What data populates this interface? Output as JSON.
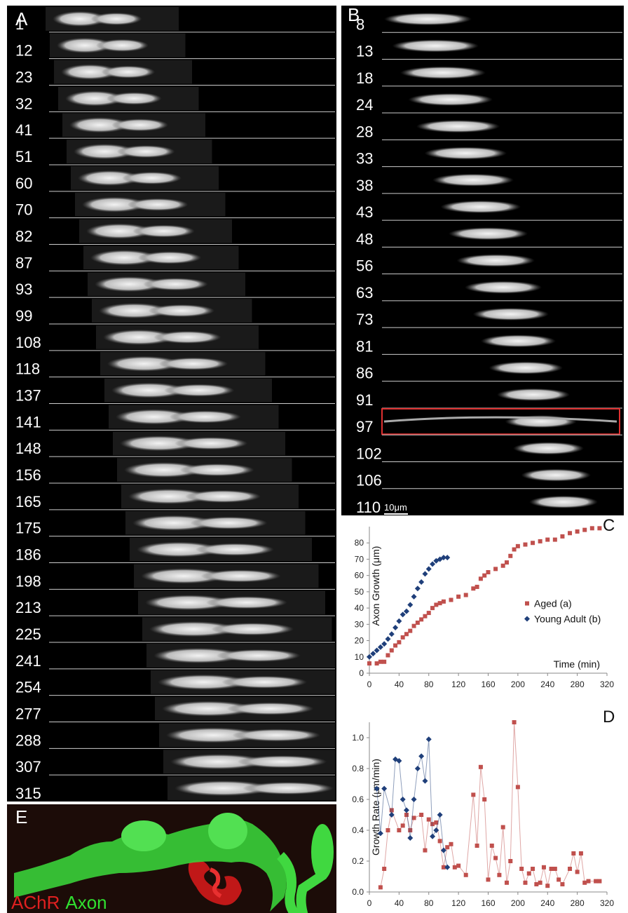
{
  "panels": {
    "A": {
      "label": "A",
      "times": [
        1,
        12,
        23,
        32,
        41,
        51,
        60,
        70,
        82,
        87,
        93,
        99,
        108,
        118,
        137,
        141,
        148,
        156,
        165,
        175,
        186,
        198,
        213,
        225,
        241,
        254,
        277,
        288,
        307,
        315
      ]
    },
    "B": {
      "label": "B",
      "times": [
        8,
        13,
        18,
        24,
        28,
        33,
        38,
        43,
        48,
        56,
        63,
        73,
        81,
        86,
        91,
        97,
        102,
        106,
        110
      ],
      "scale_bar": "10μm",
      "highlight": {
        "time": 97,
        "color": "#e03030"
      }
    },
    "E": {
      "label": "E",
      "legend": [
        {
          "text": "AChR",
          "color": "#e02020"
        },
        {
          "text": "Axon",
          "color": "#30e030"
        }
      ]
    }
  },
  "chart_data": [
    {
      "type": "scatter",
      "label": "C",
      "x_label": "Time (min)",
      "y_label": "Axon Growth (μm)",
      "xlim": [
        0,
        320
      ],
      "xticks": [
        0,
        40,
        80,
        120,
        160,
        200,
        240,
        280,
        320
      ],
      "ylim": [
        0,
        90
      ],
      "yticks": [
        0,
        10,
        20,
        30,
        40,
        50,
        60,
        70,
        80
      ],
      "legend": "right",
      "series": [
        {
          "name": "Aged (a)",
          "color": "#c0504d",
          "marker": "square",
          "x": [
            0,
            10,
            15,
            20,
            25,
            30,
            35,
            40,
            45,
            50,
            55,
            60,
            65,
            70,
            75,
            80,
            85,
            90,
            95,
            100,
            110,
            120,
            130,
            140,
            145,
            150,
            155,
            160,
            170,
            180,
            185,
            190,
            195,
            200,
            210,
            220,
            230,
            240,
            250,
            260,
            270,
            280,
            290,
            300,
            310
          ],
          "values": [
            6,
            6,
            7,
            7,
            11,
            14,
            17,
            19,
            22,
            24,
            26,
            29,
            31,
            33,
            35,
            37,
            40,
            42,
            43,
            44,
            45,
            47,
            48,
            52,
            53,
            58,
            60,
            62,
            64,
            66,
            68,
            72,
            76,
            78,
            79,
            80,
            81,
            82,
            82,
            84,
            86,
            87,
            88,
            89,
            89
          ]
        },
        {
          "name": "Young Adult (b)",
          "color": "#1f3f7a",
          "marker": "diamond",
          "x": [
            0,
            5,
            10,
            15,
            20,
            25,
            30,
            35,
            40,
            45,
            50,
            55,
            60,
            65,
            70,
            75,
            80,
            85,
            90,
            95,
            100,
            105
          ],
          "values": [
            10,
            12,
            14,
            16,
            18,
            21,
            24,
            28,
            32,
            36,
            38,
            42,
            47,
            52,
            56,
            61,
            64,
            67,
            69,
            70,
            71,
            71
          ]
        }
      ]
    },
    {
      "type": "line",
      "label": "D",
      "y_label": "Growth Rate (μm/min)",
      "xlim": [
        0,
        320
      ],
      "xticks": [
        0,
        40,
        80,
        120,
        160,
        200,
        240,
        280,
        320
      ],
      "ylim": [
        0,
        1.1
      ],
      "yticks": [
        {
          "value": 0,
          "label": "0.0"
        },
        0.2,
        0.4,
        0.6,
        0.8,
        {
          "value": 1,
          "label": "1.0"
        }
      ],
      "series": [
        {
          "name": "Aged (a)",
          "color": "#c0504d",
          "marker": "square",
          "x": [
            15,
            20,
            25,
            30,
            40,
            45,
            50,
            55,
            60,
            70,
            75,
            80,
            85,
            90,
            95,
            100,
            105,
            110,
            115,
            120,
            130,
            140,
            145,
            150,
            155,
            160,
            165,
            170,
            175,
            180,
            185,
            190,
            195,
            200,
            205,
            210,
            215,
            220,
            225,
            230,
            235,
            240,
            245,
            250,
            255,
            260,
            270,
            275,
            280,
            285,
            290,
            295,
            305,
            310
          ],
          "values": [
            0.03,
            0.15,
            0.4,
            0.53,
            0.4,
            0.43,
            0.5,
            0.4,
            0.48,
            0.5,
            0.27,
            0.47,
            0.44,
            0.45,
            0.33,
            0.16,
            0.29,
            0.31,
            0.16,
            0.17,
            0.11,
            0.63,
            0.3,
            0.81,
            0.6,
            0.08,
            0.3,
            0.22,
            0.11,
            0.42,
            0.06,
            0.2,
            1.1,
            0.68,
            0.15,
            0.06,
            0.12,
            0.15,
            0.05,
            0.06,
            0.16,
            0.04,
            0.15,
            0.15,
            0.08,
            0.05,
            0.15,
            0.25,
            0.13,
            0.25,
            0.06,
            0.07,
            0.07,
            0.07
          ]
        },
        {
          "name": "Young Adult (b)",
          "color": "#1f3f7a",
          "marker": "diamond",
          "x": [
            10,
            15,
            20,
            30,
            35,
            40,
            45,
            50,
            55,
            60,
            65,
            70,
            75,
            80,
            85,
            90,
            95,
            100,
            105
          ],
          "values": [
            0.67,
            0.38,
            0.67,
            0.5,
            0.86,
            0.85,
            0.6,
            0.53,
            0.35,
            0.6,
            0.8,
            0.88,
            0.72,
            0.99,
            0.36,
            0.4,
            0.5,
            0.27,
            0.16
          ]
        }
      ]
    }
  ]
}
